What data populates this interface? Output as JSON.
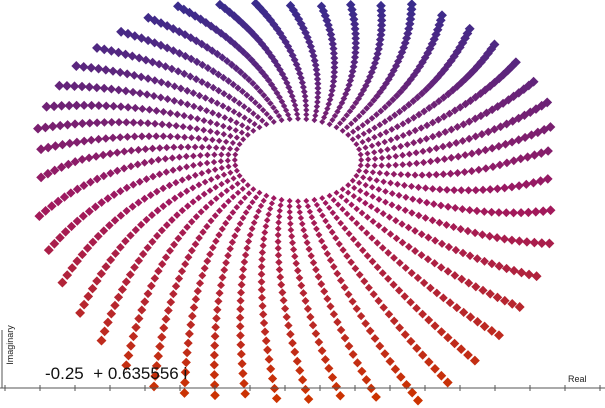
{
  "chart_data": {
    "type": "scatter",
    "title": "",
    "xlabel": "Real",
    "ylabel": "Imaginary",
    "readout": "-0.25  + 0.635556 i",
    "marker": "diamond",
    "grid": false,
    "color_low": "#cc3300",
    "color_mid": "#a0185f",
    "color_high": "#3a2c8c",
    "series": [
      {
        "pattern": "spiral-lattice",
        "rings": 30,
        "points_per_ring": 48,
        "twist_turns": 0.55,
        "hole_radius": 0.11,
        "outer_radius": 0.46
      }
    ],
    "x_ticks": 18
  }
}
